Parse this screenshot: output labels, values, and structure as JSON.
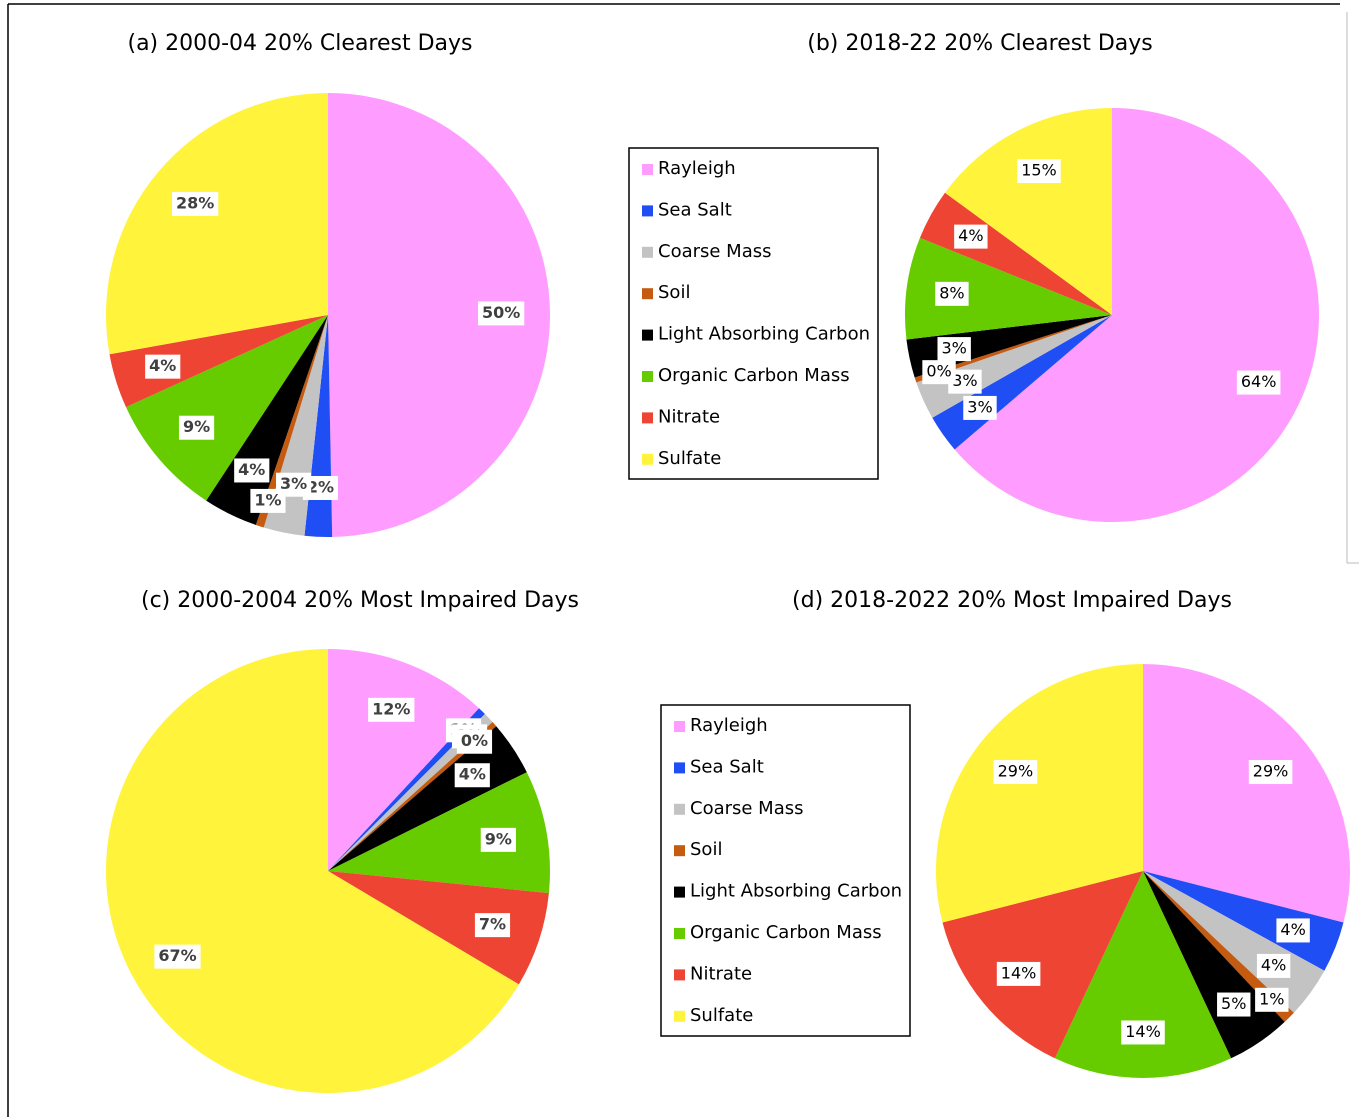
{
  "chart_data": [
    {
      "type": "pie",
      "title": "(a) 2000-04 20% Clearest Days",
      "categories": [
        "Rayleigh",
        "Sea Salt",
        "Coarse Mass",
        "Soil",
        "Light Absorbing Carbon",
        "Organic Carbon Mass",
        "Nitrate",
        "Sulfate"
      ],
      "values": [
        50,
        2,
        3,
        0.6,
        4,
        9,
        4,
        28
      ],
      "value_labels": [
        "50%",
        "2%",
        "3%",
        "1%",
        "4%",
        "9%",
        "4%",
        "28%"
      ],
      "colors": [
        "#ff9cff",
        "#1f4ef5",
        "#c3c3c3",
        "#c55a11",
        "#000000",
        "#66cc00",
        "#ee4433",
        "#fff33b"
      ],
      "legend": true
    },
    {
      "type": "pie",
      "title": "(b) 2018-22 20% Clearest Days",
      "categories": [
        "Rayleigh",
        "Sea Salt",
        "Coarse Mass",
        "Soil",
        "Light Absorbing Carbon",
        "Organic Carbon Mass",
        "Nitrate",
        "Sulfate"
      ],
      "values": [
        64,
        3,
        3,
        0.4,
        3,
        8,
        4,
        15
      ],
      "value_labels": [
        "64%",
        "3%",
        "3%",
        "0%",
        "3%",
        "8%",
        "4%",
        "15%"
      ],
      "colors": [
        "#ff9cff",
        "#1f4ef5",
        "#c3c3c3",
        "#c55a11",
        "#000000",
        "#66cc00",
        "#ee4433",
        "#fff33b"
      ],
      "legend": false
    },
    {
      "type": "pie",
      "title": "(c) 2000-2004 20% Most Impaired Days",
      "categories": [
        "Rayleigh",
        "Sea Salt",
        "Coarse Mass",
        "Soil",
        "Light Absorbing Carbon",
        "Organic Carbon Mass",
        "Nitrate",
        "Sulfate"
      ],
      "values": [
        12,
        0.6,
        0.8,
        0.4,
        4,
        9,
        7,
        67
      ],
      "value_labels": [
        "12%",
        "1%",
        "1%",
        "0%",
        "4%",
        "9%",
        "7%",
        "67%"
      ],
      "colors": [
        "#ff9cff",
        "#1f4ef5",
        "#c3c3c3",
        "#c55a11",
        "#000000",
        "#66cc00",
        "#ee4433",
        "#fff33b"
      ],
      "legend": true
    },
    {
      "type": "pie",
      "title": "(d) 2018-2022 20% Most Impaired Days",
      "categories": [
        "Rayleigh",
        "Sea Salt",
        "Coarse Mass",
        "Soil",
        "Light Absorbing Carbon",
        "Organic Carbon Mass",
        "Nitrate",
        "Sulfate"
      ],
      "values": [
        29,
        4,
        4,
        1,
        5,
        14,
        14,
        29
      ],
      "value_labels": [
        "29%",
        "4%",
        "4%",
        "1%",
        "5%",
        "14%",
        "14%",
        "29%"
      ],
      "colors": [
        "#ff9cff",
        "#1f4ef5",
        "#c3c3c3",
        "#c55a11",
        "#000000",
        "#66cc00",
        "#ee4433",
        "#fff33b"
      ],
      "legend": false
    }
  ]
}
